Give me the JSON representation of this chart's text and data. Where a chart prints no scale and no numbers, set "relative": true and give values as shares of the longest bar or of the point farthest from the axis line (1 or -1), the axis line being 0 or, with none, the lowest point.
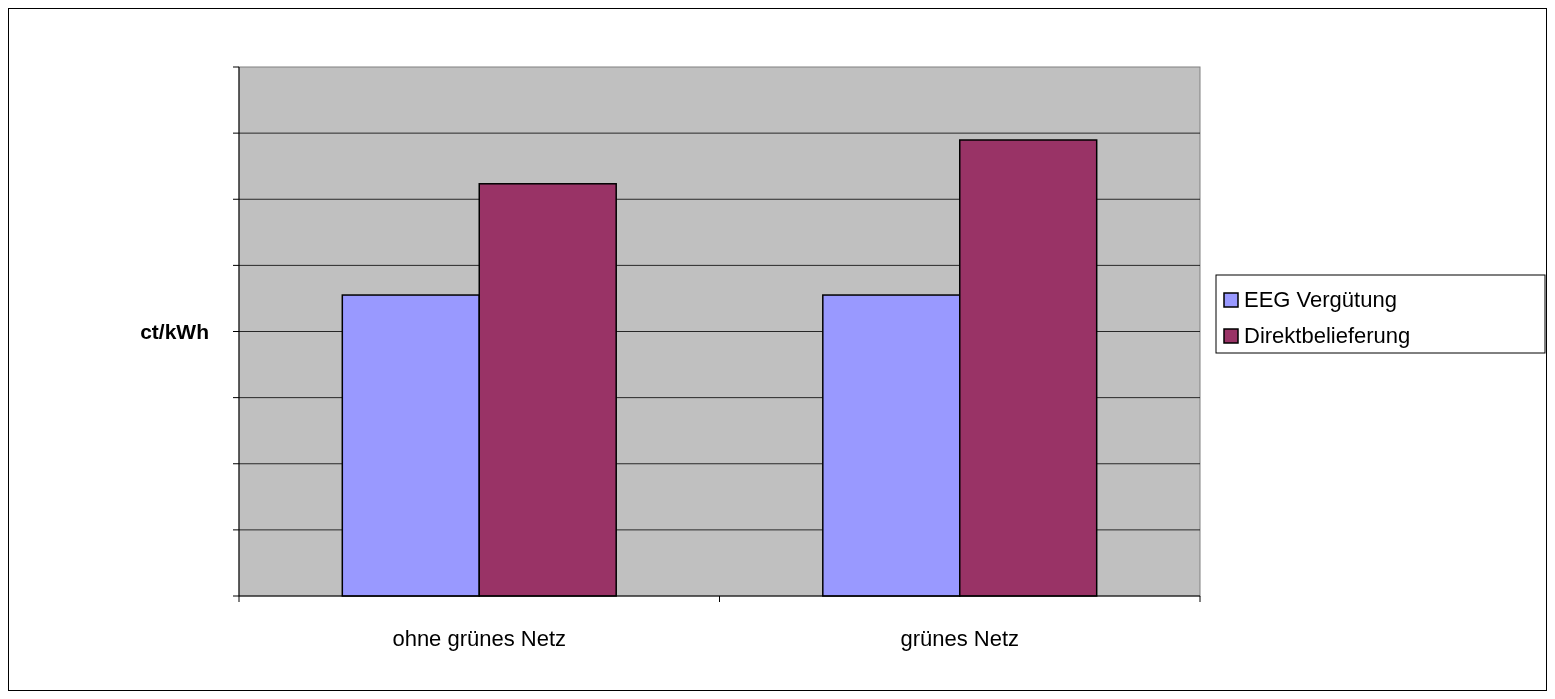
{
  "chart_data": {
    "type": "bar",
    "ylabel": "ct/kWh",
    "categories": [
      "ohne grünes Netz",
      "grünes Netz"
    ],
    "relative": true,
    "grid": "y",
    "legend": "right",
    "series": [
      {
        "name": "EEG Vergütung",
        "color": "#9999ff",
        "values": [
          0.66,
          0.66
        ]
      },
      {
        "name": "Direktbelieferung",
        "color": "#993366",
        "values": [
          0.904,
          1
        ]
      }
    ]
  }
}
